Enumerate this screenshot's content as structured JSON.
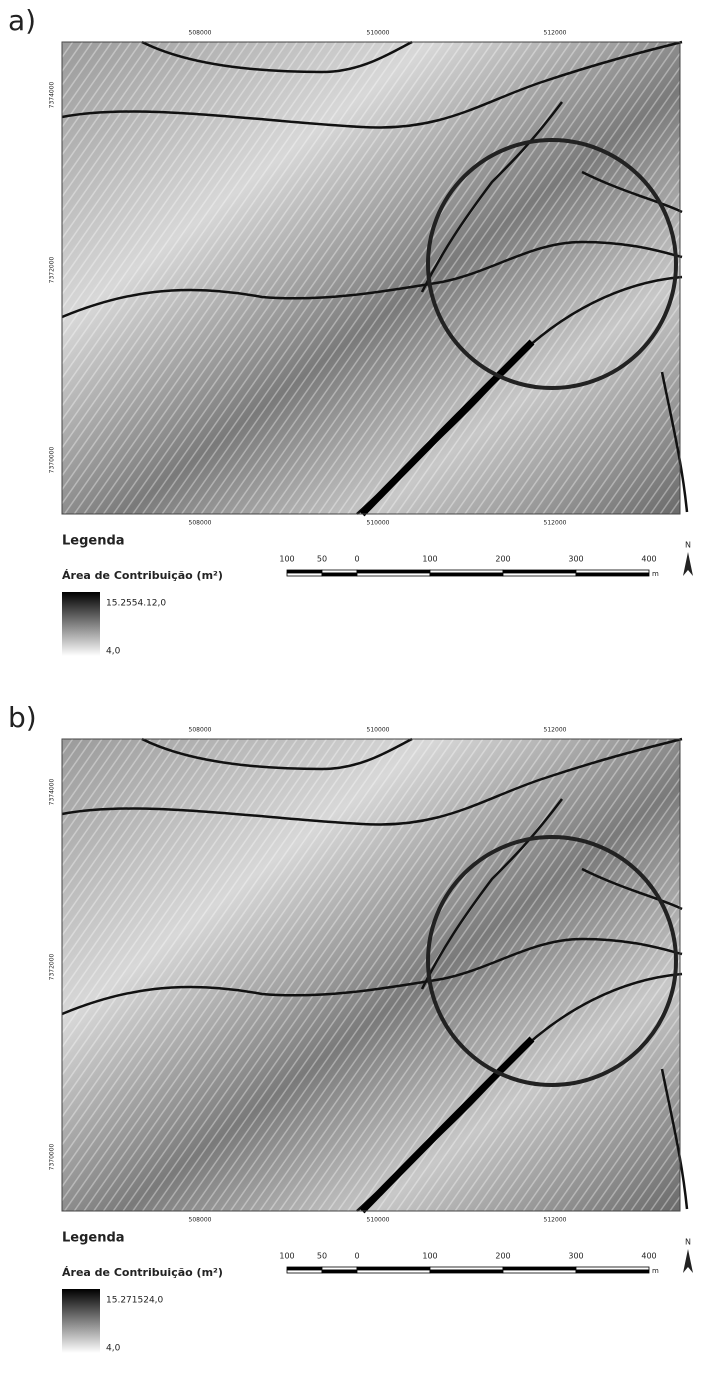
{
  "panels": [
    {
      "label": "a)",
      "top_ticks": [
        "508000",
        "510000",
        "512000"
      ],
      "left_ticks": [
        "7374000",
        "7372000",
        "7370000"
      ],
      "bottom_ticks": [
        "508000",
        "510000",
        "512000"
      ],
      "legend_title": "Legenda",
      "legend_subtitle": "Área de Contribuição (m²)",
      "legend_max": "15.2554.12,0",
      "legend_min": "4,0",
      "scale_labels": [
        "100",
        "50",
        "0",
        "100",
        "200",
        "300",
        "400"
      ],
      "scale_unit": "m",
      "north": "N"
    },
    {
      "label": "b)",
      "top_ticks": [
        "508000",
        "510000",
        "512000"
      ],
      "left_ticks": [
        "7374000",
        "7372000",
        "7370000"
      ],
      "bottom_ticks": [
        "508000",
        "510000",
        "512000"
      ],
      "legend_title": "Legenda",
      "legend_subtitle": "Área de Contribuição (m²)",
      "legend_max": "15.271524,0",
      "legend_min": "4,0",
      "scale_labels": [
        "100",
        "50",
        "0",
        "100",
        "200",
        "300",
        "400"
      ],
      "scale_unit": "m",
      "north": "N"
    }
  ]
}
